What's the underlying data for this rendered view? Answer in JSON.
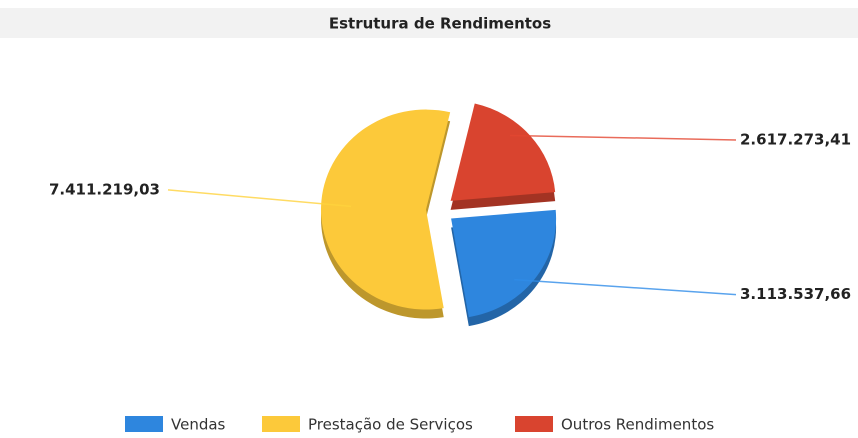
{
  "chart_data": {
    "type": "pie",
    "title": "Estrutura de Rendimentos",
    "categories": [
      "Vendas",
      "Prestação de Serviços",
      "Outros Rendimentos"
    ],
    "values": [
      3113537.66,
      7411219.03,
      2617273.41
    ],
    "value_labels": [
      "3.113.537,66",
      "7.411.219,03",
      "2.617.273,41"
    ],
    "colors": [
      "#2e86de",
      "#fcc93a",
      "#d9442f"
    ],
    "legend": "bottom"
  }
}
